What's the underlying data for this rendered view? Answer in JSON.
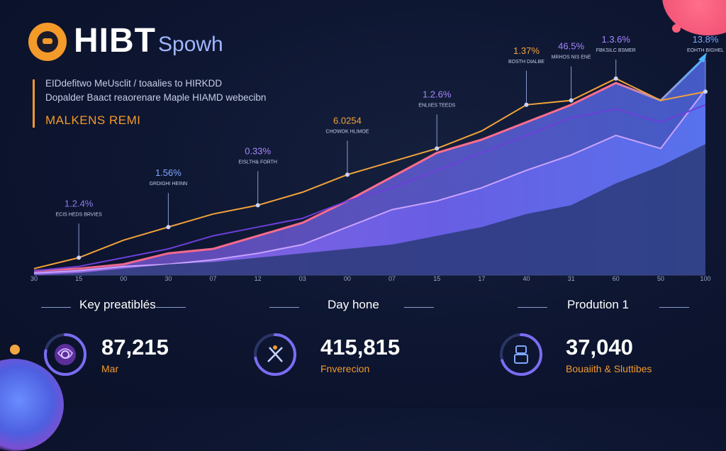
{
  "brand": {
    "title": "HIBT",
    "subtitle": "Spowh"
  },
  "description": {
    "line1": "EIDdefitwo MeUsclit / toaalies to HIRKDD",
    "line2": "Dopalder Baact reaorenare Maple HIAMD webecibn",
    "line3": "MALKENS REMI"
  },
  "chart_data": {
    "type": "area",
    "x": [
      "30",
      "15",
      "00",
      "30",
      "07",
      "12",
      "03",
      "00",
      "07",
      "15",
      "17",
      "40",
      "31",
      "60",
      "50",
      "100"
    ],
    "ylim": [
      0,
      100
    ],
    "series": [
      {
        "values": [
          1,
          2,
          4,
          5,
          7,
          10,
          14,
          22,
          30,
          34,
          40,
          48,
          55,
          64,
          58,
          85
        ]
      },
      {
        "values": [
          2,
          3,
          5,
          10,
          12,
          18,
          24,
          34,
          45,
          56,
          62,
          70,
          78,
          88,
          80,
          100
        ]
      },
      {
        "values": [
          0,
          1,
          3,
          5,
          6,
          8,
          10,
          12,
          14,
          18,
          22,
          28,
          32,
          42,
          50,
          60
        ]
      }
    ],
    "lines": [
      {
        "color": "#f3a33a",
        "values": [
          3,
          8,
          16,
          22,
          28,
          32,
          38,
          46,
          52,
          58,
          66,
          78,
          80,
          90,
          80,
          84
        ]
      },
      {
        "color": "#6b3fd8",
        "values": [
          2,
          4,
          8,
          12,
          18,
          22,
          26,
          34,
          40,
          48,
          56,
          64,
          72,
          76,
          70,
          78
        ]
      }
    ],
    "annotations": [
      {
        "value": "1.2.4%",
        "caption": "ECIS HEDS BRVIES",
        "color": "#8d7cf2",
        "at": 1
      },
      {
        "value": "1.56%",
        "caption": "GRDIGHI HEINN",
        "color": "#7fa8ff",
        "at": 3
      },
      {
        "value": "0.33%",
        "caption": "EISLTH& FORTH",
        "color": "#a786ff",
        "at": 5
      },
      {
        "value": "6.0254",
        "caption": "CHOWOK HLIMOE",
        "color": "#f3a33a",
        "at": 7
      },
      {
        "value": "1.2.6%",
        "caption": "ENLIIES TEEDS",
        "color": "#a786ff",
        "at": 9
      },
      {
        "value": "1.37%",
        "caption": "BOSTH DIALBE",
        "color": "#f3a33a",
        "at": 11
      },
      {
        "value": "46.5%",
        "caption": "MRHOS NIS ENE",
        "color": "#a786ff",
        "at": 12
      },
      {
        "value": "1.3.6%",
        "caption": "FBKSILC BSMER",
        "color": "#a786ff",
        "at": 13
      },
      {
        "value": "13.8%",
        "caption": "EOHTH BIGHEL",
        "color": "#7fa8ff",
        "at": 15
      }
    ]
  },
  "stats": [
    {
      "heading": "Key preatiblés",
      "value": "87,215",
      "label": "Mar",
      "icon": "rose-icon",
      "ring": 0.78
    },
    {
      "heading": "Day hone",
      "value": "415,815",
      "label": "Fnverecion",
      "icon": "tools-icon",
      "ring": 0.72
    },
    {
      "heading": "Prodution 1",
      "value": "37,040",
      "label": "Bouaiith & Sluttibes",
      "icon": "robot-icon",
      "ring": 0.7
    }
  ]
}
